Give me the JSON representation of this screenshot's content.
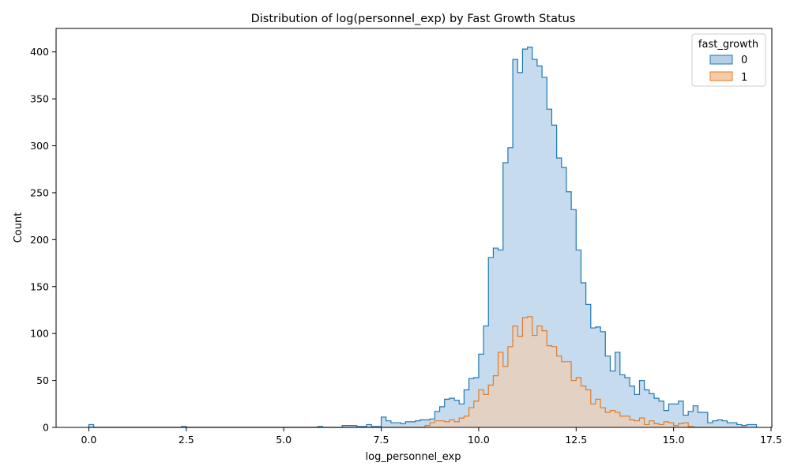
{
  "chart_data": {
    "type": "histogram",
    "title": "Distribution of log(personnel_exp) by Fast Growth Status",
    "xlabel": "log_personnel_exp",
    "ylabel": "Count",
    "xlim": [
      -0.84,
      17.52
    ],
    "ylim": [
      0,
      425
    ],
    "x_ticks": [
      0.0,
      2.5,
      5.0,
      7.5,
      10.0,
      12.5,
      15.0,
      17.5
    ],
    "x_tick_labels": [
      "0.0",
      "2.5",
      "5.0",
      "7.5",
      "10.0",
      "12.5",
      "15.0",
      "17.5"
    ],
    "y_ticks": [
      0,
      50,
      100,
      150,
      200,
      250,
      300,
      350,
      400
    ],
    "y_tick_labels": [
      "0",
      "50",
      "100",
      "150",
      "200",
      "250",
      "300",
      "350",
      "400"
    ],
    "grid": false,
    "legend": {
      "title": "fast_growth",
      "placement": "top-right"
    },
    "bin_start": 0.0,
    "bin_width": 0.125,
    "series": [
      {
        "name": "0",
        "stroke": "#1f77b4",
        "fill": "#b3cfe8",
        "counts": [
          3,
          0,
          0,
          0,
          0,
          0,
          0,
          0,
          0,
          0,
          0,
          0,
          0,
          0,
          0,
          0,
          0,
          0,
          0,
          1,
          0,
          0,
          0,
          0,
          0,
          0,
          0,
          0,
          0,
          0,
          0,
          0,
          0,
          0,
          0,
          0,
          0,
          0,
          0,
          0,
          0,
          0,
          0,
          0,
          0,
          0,
          0,
          1,
          0,
          0,
          0,
          0,
          2,
          2,
          2,
          1,
          1,
          3,
          1,
          1,
          11,
          7,
          5,
          5,
          4,
          6,
          6,
          7,
          8,
          8,
          9,
          17,
          22,
          30,
          31,
          29,
          25,
          40,
          52,
          53,
          78,
          108,
          181,
          191,
          189,
          282,
          298,
          392,
          378,
          403,
          405,
          392,
          385,
          373,
          339,
          322,
          287,
          277,
          251,
          232,
          189,
          154,
          131,
          106,
          107,
          102,
          76,
          60,
          80,
          56,
          53,
          44,
          35,
          50,
          40,
          36,
          31,
          28,
          18,
          25,
          25,
          28,
          13,
          17,
          23,
          16,
          16,
          5,
          7,
          8,
          7,
          5,
          5,
          3,
          2,
          3,
          3
        ]
      },
      {
        "name": "1",
        "stroke": "#e07b2a",
        "fill": "#f6cba6",
        "counts": [
          0,
          0,
          0,
          0,
          0,
          0,
          0,
          0,
          0,
          0,
          0,
          0,
          0,
          0,
          0,
          0,
          0,
          0,
          0,
          0,
          0,
          0,
          0,
          0,
          0,
          0,
          0,
          0,
          0,
          0,
          0,
          0,
          0,
          0,
          0,
          0,
          0,
          0,
          0,
          0,
          0,
          0,
          0,
          0,
          0,
          0,
          0,
          0,
          0,
          0,
          0,
          0,
          0,
          0,
          0,
          0,
          0,
          0,
          0,
          0,
          0,
          0,
          0,
          0,
          0,
          0,
          0,
          0,
          0,
          2,
          5,
          7,
          7,
          6,
          8,
          6,
          10,
          12,
          21,
          28,
          40,
          35,
          45,
          55,
          80,
          65,
          86,
          108,
          97,
          117,
          118,
          98,
          108,
          103,
          87,
          86,
          76,
          70,
          70,
          50,
          53,
          44,
          40,
          25,
          30,
          21,
          16,
          18,
          16,
          12,
          12,
          8,
          7,
          10,
          3,
          7,
          4,
          3,
          6,
          5,
          2,
          4,
          5,
          1,
          0,
          0,
          0,
          0,
          0,
          0,
          0,
          0,
          0,
          0,
          0
        ]
      }
    ]
  }
}
